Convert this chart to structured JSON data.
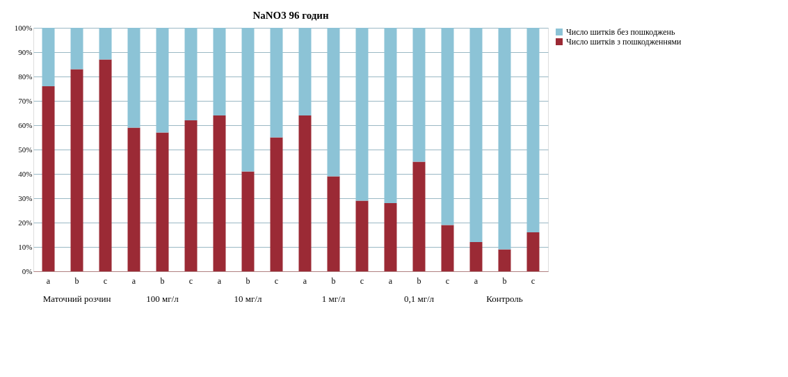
{
  "chart_data": {
    "type": "bar",
    "stacked": true,
    "title": "NaNO3 96 годин",
    "categories": [
      "a",
      "b",
      "c",
      "a",
      "b",
      "c",
      "a",
      "b",
      "c",
      "a",
      "b",
      "c",
      "a",
      "b",
      "c",
      "a",
      "b",
      "c"
    ],
    "series": [
      {
        "name": "Число шитків з пошкодженнями",
        "color": "#9b2a35",
        "values": [
          76,
          83,
          87,
          59,
          57,
          62,
          64,
          41,
          55,
          64,
          39,
          29,
          28,
          45,
          19,
          12,
          9,
          16
        ]
      },
      {
        "name": "Число шитків без пошкоджень",
        "color": "#8cc3d6",
        "values": [
          24,
          17,
          13,
          41,
          43,
          38,
          36,
          59,
          45,
          36,
          61,
          71,
          72,
          55,
          81,
          88,
          91,
          84
        ]
      }
    ],
    "annotations": [
      "Маточний розчин",
      "100 мг/л",
      "10 мг/л",
      "1 мг/л",
      "0,1 мг/л",
      "Контроль"
    ],
    "ylim": [
      0,
      100
    ],
    "yticks": [
      {
        "value": 0,
        "label": "0%"
      },
      {
        "value": 10,
        "label": "10%"
      },
      {
        "value": 20,
        "label": "20%"
      },
      {
        "value": 30,
        "label": "30%"
      },
      {
        "value": 40,
        "label": "40%"
      },
      {
        "value": 50,
        "label": "50%"
      },
      {
        "value": 60,
        "label": "60%"
      },
      {
        "value": 70,
        "label": "70%"
      },
      {
        "value": 80,
        "label": "80%"
      },
      {
        "value": 90,
        "label": "90%"
      },
      {
        "value": 100,
        "label": "100%"
      }
    ],
    "grid": "y",
    "legend": "right"
  }
}
